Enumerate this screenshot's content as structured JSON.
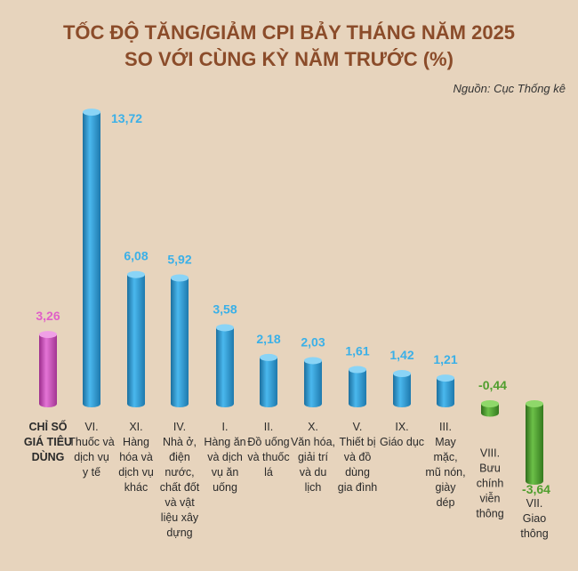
{
  "chart_data": {
    "type": "bar",
    "title": [
      "TỐC ĐỘ TĂNG/GIẢM CPI BẢY THÁNG NĂM 2025",
      "SO VỚI CÙNG KỲ NĂM TRƯỚC (%)"
    ],
    "source": "Nguồn: Cục Thống kê",
    "categories": [
      [
        "CHỈ SỐ",
        "GIÁ TIÊU",
        "DÙNG"
      ],
      [
        "VI.",
        "Thuốc và",
        "dịch vụ",
        "y tế"
      ],
      [
        "XI.",
        "Hàng",
        "hóa và",
        "dịch vụ",
        "khác"
      ],
      [
        "IV.",
        "Nhà ở,",
        "điện",
        "nước,",
        "chất đốt",
        "và vật",
        "liệu xây",
        "dựng"
      ],
      [
        "I.",
        "Hàng ăn",
        "và dịch",
        "vụ ăn",
        "uống"
      ],
      [
        "II.",
        "Đồ uống",
        "và thuốc",
        "lá"
      ],
      [
        "X.",
        "Văn hóa,",
        "giải trí",
        "và du",
        "lịch"
      ],
      [
        "V.",
        "Thiết bị",
        "và đồ",
        "dùng",
        "gia đình"
      ],
      [
        "IX.",
        "Giáo dục"
      ],
      [
        "III.",
        "May",
        "mặc,",
        "mũ nón,",
        "giày",
        "dép"
      ],
      [
        "VIII.",
        "Bưu",
        "chính",
        "viễn",
        "thông"
      ],
      [
        "VII.",
        "Giao",
        "thông"
      ]
    ],
    "values": [
      3.26,
      13.72,
      6.08,
      5.92,
      3.58,
      2.18,
      2.03,
      1.61,
      1.42,
      1.21,
      -0.44,
      -3.64
    ],
    "value_labels": [
      "3,26",
      "13,72",
      "6,08",
      "5,92",
      "3,58",
      "2,18",
      "2,03",
      "1,61",
      "1,42",
      "1,21",
      "-0,44",
      "-3,64"
    ],
    "colors": {
      "total": "#d966c8",
      "positive": "#3aa8e0",
      "negative": "#52a336",
      "total_label": "#e060c8",
      "positive_label": "#3ab0e8",
      "negative_label": "#4f9e2d",
      "category_text": "#2a2a2a"
    },
    "grid": false,
    "legend": "none"
  }
}
